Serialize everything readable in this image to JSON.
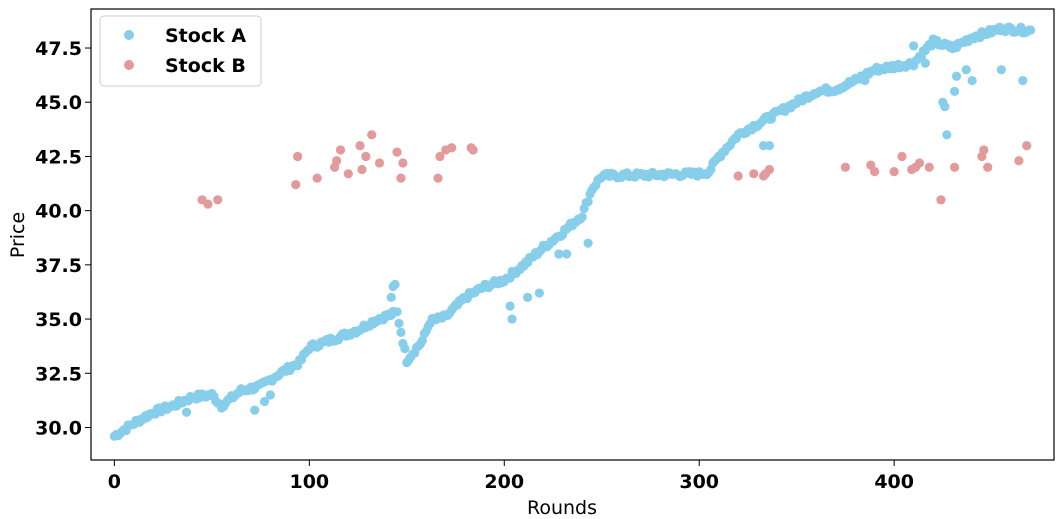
{
  "chart_data": {
    "type": "scatter",
    "xlabel": "Rounds",
    "ylabel": "Price",
    "xlim": [
      -12,
      482
    ],
    "ylim": [
      28.5,
      49.3
    ],
    "x_ticks": [
      0,
      100,
      200,
      300,
      400
    ],
    "y_ticks": [
      30.0,
      32.5,
      35.0,
      37.5,
      40.0,
      42.5,
      45.0,
      47.5
    ],
    "grid": false,
    "legend": "top-left",
    "series": [
      {
        "name": "Stock A",
        "color": "#87CEEB",
        "anchors": [
          [
            0,
            29.6
          ],
          [
            10,
            30.2
          ],
          [
            20,
            30.7
          ],
          [
            30,
            31.0
          ],
          [
            40,
            31.4
          ],
          [
            50,
            31.5
          ],
          [
            55,
            31.0
          ],
          [
            65,
            31.7
          ],
          [
            75,
            31.9
          ],
          [
            85,
            32.5
          ],
          [
            95,
            33.0
          ],
          [
            100,
            33.7
          ],
          [
            110,
            34.0
          ],
          [
            125,
            34.5
          ],
          [
            135,
            35.0
          ],
          [
            145,
            35.3
          ],
          [
            150,
            33.1
          ],
          [
            158,
            34.0
          ],
          [
            162,
            34.9
          ],
          [
            170,
            35.1
          ],
          [
            180,
            36.0
          ],
          [
            190,
            36.5
          ],
          [
            200,
            36.8
          ],
          [
            210,
            37.5
          ],
          [
            220,
            38.3
          ],
          [
            230,
            39.0
          ],
          [
            240,
            39.8
          ],
          [
            245,
            41.0
          ],
          [
            250,
            41.6
          ],
          [
            300,
            41.7
          ],
          [
            305,
            41.8
          ],
          [
            310,
            42.5
          ],
          [
            320,
            43.5
          ],
          [
            330,
            44.0
          ],
          [
            340,
            44.5
          ],
          [
            350,
            45.0
          ],
          [
            360,
            45.5
          ],
          [
            370,
            45.6
          ],
          [
            380,
            46.0
          ],
          [
            390,
            46.5
          ],
          [
            410,
            46.8
          ],
          [
            420,
            47.8
          ],
          [
            430,
            47.5
          ],
          [
            440,
            48.0
          ],
          [
            455,
            48.4
          ],
          [
            470,
            48.3
          ]
        ],
        "count": 470,
        "outliers": [
          [
            142,
            36.0
          ],
          [
            143,
            36.5
          ],
          [
            144,
            36.6
          ],
          [
            72,
            30.8
          ],
          [
            77,
            31.2
          ],
          [
            80,
            31.5
          ],
          [
            204,
            35.0
          ],
          [
            203,
            35.6
          ],
          [
            212,
            36.0
          ],
          [
            218,
            36.2
          ],
          [
            228,
            38.0
          ],
          [
            232,
            38.0
          ],
          [
            243,
            38.5
          ],
          [
            333,
            43.0
          ],
          [
            336,
            43.0
          ],
          [
            385,
            46.0
          ],
          [
            416,
            46.8
          ],
          [
            425,
            45.0
          ],
          [
            426,
            44.8
          ],
          [
            427,
            43.5
          ],
          [
            431,
            45.5
          ],
          [
            432,
            46.2
          ],
          [
            437,
            46.5
          ],
          [
            440,
            46.0
          ],
          [
            455,
            46.5
          ],
          [
            466,
            46.0
          ],
          [
            410,
            47.6
          ],
          [
            37,
            30.7
          ]
        ]
      },
      {
        "name": "Stock B",
        "color": "#E39A9A",
        "points": [
          [
            45,
            40.5
          ],
          [
            48,
            40.3
          ],
          [
            53,
            40.5
          ],
          [
            93,
            41.2
          ],
          [
            94,
            42.5
          ],
          [
            104,
            41.5
          ],
          [
            113,
            42.0
          ],
          [
            114,
            42.3
          ],
          [
            116,
            42.8
          ],
          [
            120,
            41.7
          ],
          [
            126,
            43.0
          ],
          [
            127,
            41.9
          ],
          [
            129,
            42.5
          ],
          [
            132,
            43.5
          ],
          [
            136,
            42.2
          ],
          [
            145,
            42.7
          ],
          [
            147,
            41.5
          ],
          [
            148,
            42.2
          ],
          [
            166,
            41.5
          ],
          [
            167,
            42.5
          ],
          [
            170,
            42.8
          ],
          [
            173,
            42.9
          ],
          [
            183,
            42.9
          ],
          [
            184,
            42.8
          ],
          [
            320,
            41.6
          ],
          [
            328,
            41.7
          ],
          [
            333,
            41.6
          ],
          [
            334,
            41.7
          ],
          [
            336,
            41.9
          ],
          [
            375,
            42.0
          ],
          [
            388,
            42.1
          ],
          [
            390,
            41.8
          ],
          [
            400,
            41.8
          ],
          [
            404,
            42.5
          ],
          [
            409,
            41.9
          ],
          [
            411,
            42.0
          ],
          [
            413,
            42.2
          ],
          [
            418,
            42.0
          ],
          [
            424,
            40.5
          ],
          [
            431,
            42.0
          ],
          [
            445,
            42.5
          ],
          [
            446,
            42.8
          ],
          [
            448,
            42.0
          ],
          [
            464,
            42.3
          ],
          [
            468,
            43.0
          ]
        ]
      }
    ]
  }
}
